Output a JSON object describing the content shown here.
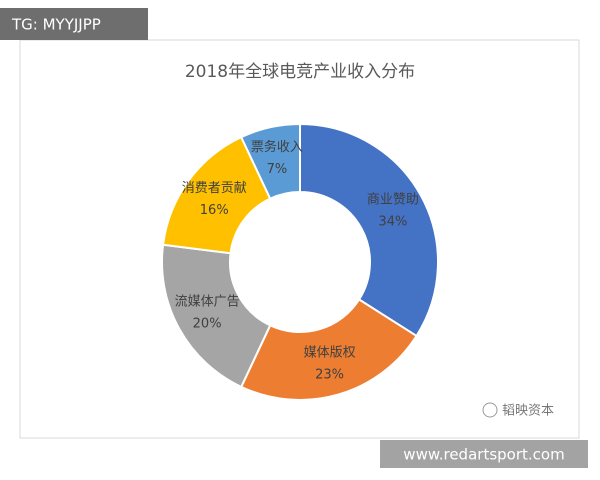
{
  "chart_data": {
    "type": "donut",
    "title": "2018年全球电竞产业收入分布",
    "categories": [
      "商业赞助",
      "媒体版权",
      "流媒体广告",
      "消费者贡献",
      "票务收入"
    ],
    "values": [
      34,
      23,
      20,
      16,
      7
    ],
    "value_labels": [
      "34%",
      "23%",
      "20%",
      "16%",
      "7%"
    ],
    "colors": [
      "#4472c4",
      "#ed7d31",
      "#a5a5a5",
      "#ffc000",
      "#5b9bd5"
    ]
  },
  "watermarks": {
    "top_left": "TG: MYYJJPP",
    "logo": "韬映资本",
    "bottom_right": "www.redartsport.com"
  }
}
